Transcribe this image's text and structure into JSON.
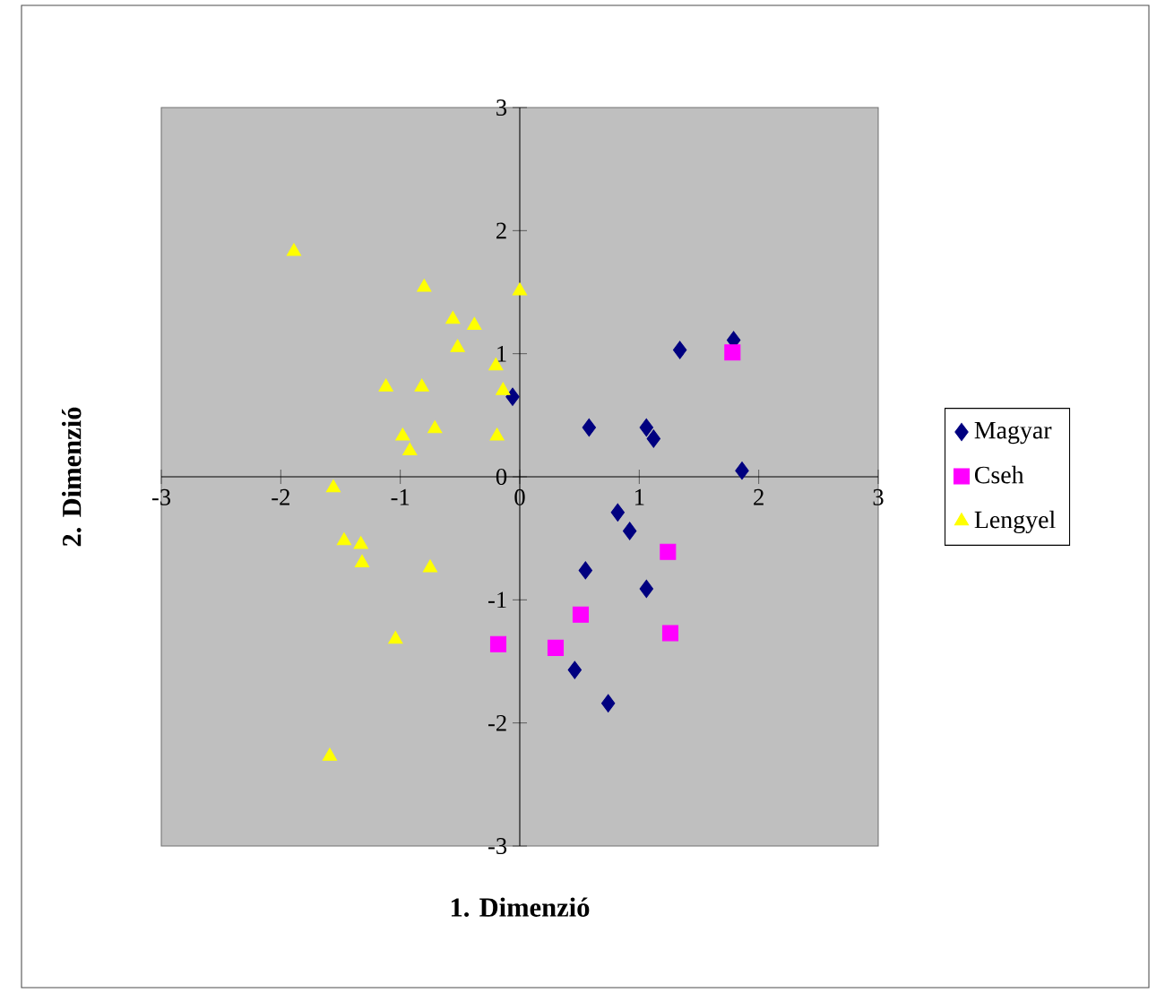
{
  "chart_data": {
    "type": "scatter",
    "xlabel": "1. Dimenzió",
    "ylabel": "2. Dimenzió",
    "xlim": [
      -3,
      3
    ],
    "ylim": [
      -3,
      3
    ],
    "xticks": [
      -3,
      -2,
      -1,
      0,
      1,
      2,
      3
    ],
    "yticks": [
      -3,
      -2,
      -1,
      0,
      1,
      2,
      3
    ],
    "grid": false,
    "legend": "right",
    "series": [
      {
        "name": "Magyar",
        "color": "#000080",
        "marker": "diamond",
        "x": [
          1.34,
          1.79,
          0.58,
          1.06,
          1.12,
          1.86,
          0.82,
          0.92,
          0.55,
          1.06,
          0.46,
          0.74,
          -0.06
        ],
        "values": [
          1.03,
          1.11,
          0.4,
          0.4,
          0.31,
          0.05,
          -0.29,
          -0.44,
          -0.76,
          -0.91,
          -1.57,
          -1.84,
          0.65
        ]
      },
      {
        "name": "Cseh",
        "color": "#ff00ff",
        "marker": "square",
        "x": [
          1.78,
          1.24,
          0.51,
          0.3,
          1.26,
          -0.18
        ],
        "values": [
          1.01,
          -0.61,
          -1.12,
          -1.39,
          -1.27,
          -1.36
        ]
      },
      {
        "name": "Lengyel",
        "color": "#ffff00",
        "marker": "triangle",
        "x": [
          -1.89,
          -0.8,
          0.0,
          -0.56,
          -0.38,
          -0.52,
          -0.2,
          -1.12,
          -0.82,
          -0.14,
          -0.98,
          -0.71,
          -0.92,
          -0.19,
          -1.56,
          -1.47,
          -1.33,
          -1.32,
          -0.75,
          -1.04,
          -1.59
        ],
        "values": [
          1.83,
          1.54,
          1.51,
          1.28,
          1.23,
          1.05,
          0.9,
          0.73,
          0.73,
          0.7,
          0.33,
          0.39,
          0.21,
          0.33,
          -0.09,
          -0.52,
          -0.55,
          -0.7,
          -0.74,
          -1.32,
          -2.27
        ]
      }
    ]
  }
}
